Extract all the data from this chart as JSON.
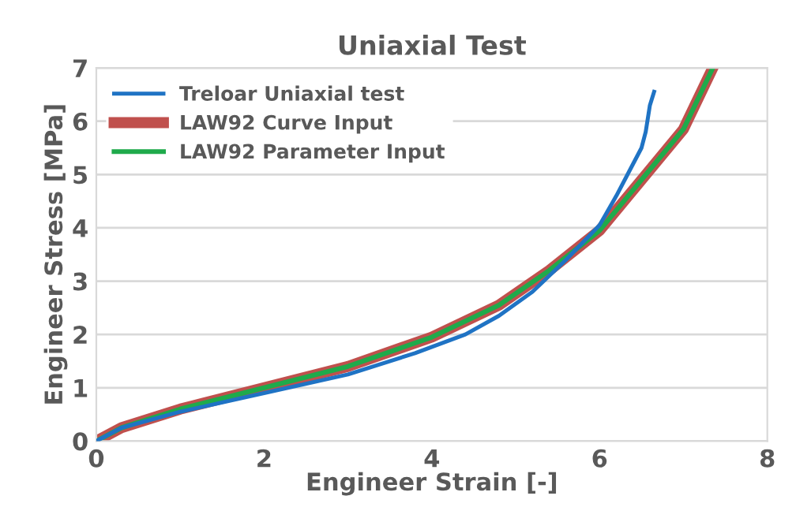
{
  "chart_data": {
    "type": "line",
    "title": "Uniaxial Test",
    "xlabel": "Engineer Strain [-]",
    "ylabel": "Engineer Stress [MPa]",
    "xlim": [
      0,
      8
    ],
    "xticks": [
      0,
      2,
      4,
      6,
      8
    ],
    "ylim": [
      0,
      7
    ],
    "yticks": [
      0,
      1,
      2,
      3,
      4,
      5,
      6,
      7
    ],
    "grid": "y",
    "legend": "top left",
    "series": [
      {
        "name": "Treloar Uniaxial test",
        "color": "#1f73c4",
        "x": [
          0,
          0.3,
          1,
          2,
          3,
          3.8,
          4.4,
          4.8,
          5.2,
          5.6,
          6.0,
          6.2,
          6.4,
          6.5,
          6.55,
          6.6,
          6.65
        ],
        "values": [
          0,
          0.25,
          0.55,
          0.9,
          1.25,
          1.65,
          2.0,
          2.35,
          2.8,
          3.4,
          4.05,
          4.6,
          5.2,
          5.5,
          5.8,
          6.3,
          6.55
        ]
      },
      {
        "name": "LAW92 Curve Input",
        "color": "#c0504d",
        "x": [
          0,
          0.3,
          1,
          2,
          3,
          4,
          4.8,
          5.4,
          6.0,
          6.5,
          7.0,
          7.35
        ],
        "values": [
          0,
          0.25,
          0.6,
          1.0,
          1.4,
          1.95,
          2.55,
          3.2,
          3.95,
          4.9,
          5.85,
          7.0
        ]
      },
      {
        "name": "LAW92 Parameter Input",
        "color": "#1faa4b",
        "x": [
          0,
          0.3,
          1,
          2,
          3,
          4,
          4.8,
          5.4,
          6.0,
          6.5,
          7.0,
          7.35
        ],
        "values": [
          0,
          0.25,
          0.6,
          1.0,
          1.4,
          1.95,
          2.55,
          3.2,
          3.95,
          4.9,
          5.85,
          7.0
        ]
      }
    ]
  }
}
